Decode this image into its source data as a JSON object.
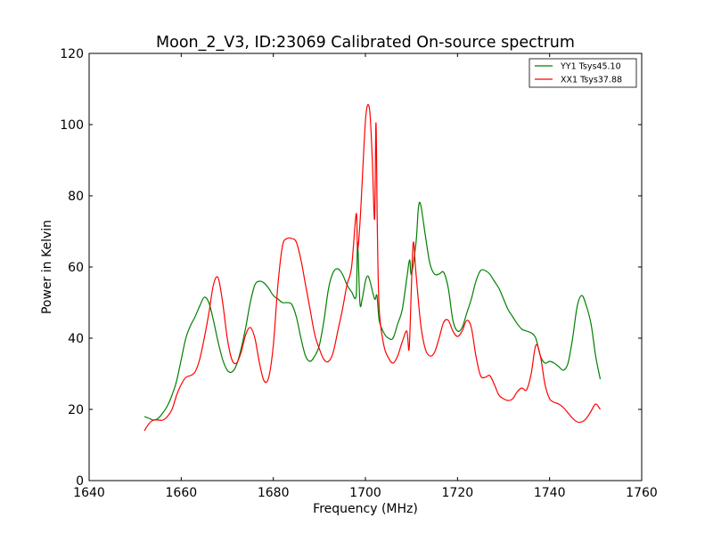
{
  "chart_data": {
    "type": "line",
    "title": "Moon_2_V3, ID:23069 Calibrated On-source spectrum",
    "xlabel": "Frequency (MHz)",
    "ylabel": "Power in Kelvin",
    "xlim": [
      1640,
      1760
    ],
    "ylim": [
      0,
      120
    ],
    "xticks": [
      "1640",
      "1660",
      "1680",
      "1700",
      "1720",
      "1740",
      "1760"
    ],
    "yticks": [
      "0",
      "20",
      "40",
      "60",
      "80",
      "100",
      "120"
    ],
    "grid": false,
    "legend_position": "top-right",
    "series": [
      {
        "name": "YY1 Tsys45.10",
        "color": "#008000",
        "x": [
          1652,
          1653,
          1654,
          1655,
          1656,
          1657,
          1658,
          1659,
          1660,
          1661,
          1662,
          1663,
          1664,
          1665,
          1666,
          1667,
          1668,
          1669,
          1670,
          1671,
          1672,
          1673,
          1674,
          1675,
          1676,
          1677,
          1678,
          1679,
          1680,
          1681,
          1682,
          1683,
          1684,
          1685,
          1686,
          1687,
          1688,
          1689,
          1690,
          1691,
          1692,
          1693,
          1694,
          1695,
          1696,
          1697,
          1698,
          1698.3,
          1698.8,
          1699.3,
          1700,
          1700.5,
          1701,
          1702,
          1702.5,
          1703,
          1704,
          1705,
          1706,
          1707,
          1708,
          1709,
          1709.6,
          1710,
          1711,
          1711.5,
          1712,
          1713,
          1714,
          1715,
          1716,
          1717,
          1718,
          1719,
          1720,
          1721,
          1722,
          1723,
          1724,
          1725,
          1726,
          1727,
          1728,
          1729,
          1730,
          1731,
          1732,
          1733,
          1734,
          1735,
          1736,
          1737,
          1738,
          1739,
          1740,
          1741,
          1742,
          1743,
          1744,
          1745,
          1746,
          1747,
          1748,
          1749,
          1750,
          1751
        ],
        "y": [
          18,
          17.5,
          17,
          17.5,
          19,
          21,
          24,
          28,
          34,
          40,
          43.5,
          46,
          49,
          51.5,
          50,
          45,
          39,
          34,
          31,
          30.5,
          32.5,
          37,
          43,
          50,
          55,
          56,
          55.5,
          54,
          52,
          51,
          50,
          50,
          49.5,
          46,
          40,
          35,
          33.5,
          35,
          38,
          45,
          54,
          58.5,
          59.5,
          58,
          55,
          53,
          52,
          67,
          50,
          51,
          56,
          57.5,
          56,
          51,
          52,
          45,
          41.5,
          40,
          40,
          44,
          48,
          57,
          62,
          58,
          67,
          76.5,
          77.5,
          69,
          61,
          58,
          58,
          58.5,
          54,
          45,
          42,
          43,
          47,
          51,
          56,
          59,
          59,
          58,
          56,
          54,
          51,
          48,
          46,
          44,
          42.5,
          42,
          41.5,
          40,
          35,
          33,
          33.5,
          33,
          32,
          31,
          33,
          40,
          49,
          52,
          49,
          44,
          35,
          28.5
        ]
      },
      {
        "name": "XX1 Tsys37.88",
        "color": "#ff0000",
        "x": [
          1652,
          1653,
          1654,
          1655,
          1656,
          1657,
          1658,
          1659,
          1660,
          1661,
          1662,
          1663,
          1664,
          1665,
          1666,
          1667,
          1668,
          1669,
          1670,
          1671,
          1672,
          1673,
          1674,
          1675,
          1676,
          1677,
          1678,
          1679,
          1680,
          1681,
          1682,
          1683,
          1684,
          1685,
          1686,
          1687,
          1688,
          1689,
          1690,
          1691,
          1692,
          1693,
          1694,
          1695,
          1696,
          1697,
          1698,
          1698.3,
          1698.8,
          1699.3,
          1700,
          1700.5,
          1701,
          1701.5,
          1702,
          1702.3,
          1702.6,
          1703,
          1704,
          1705,
          1706,
          1707,
          1708,
          1709,
          1709.5,
          1710,
          1710.4,
          1711,
          1712,
          1713,
          1714,
          1715,
          1716,
          1717,
          1718,
          1719,
          1720,
          1721,
          1722,
          1723,
          1724,
          1725,
          1726,
          1727,
          1728,
          1729,
          1730,
          1731,
          1732,
          1733,
          1734,
          1735,
          1736,
          1737,
          1738,
          1739,
          1740,
          1741,
          1742,
          1743,
          1744,
          1745,
          1746,
          1747,
          1748,
          1749,
          1750,
          1751
        ],
        "y": [
          14,
          16,
          17,
          17,
          17,
          18,
          20,
          24,
          27,
          29,
          29.5,
          30.5,
          34,
          40,
          47,
          55,
          57,
          50,
          40,
          34,
          33,
          36,
          41,
          43,
          40,
          33,
          28,
          29,
          38,
          55,
          66,
          68,
          68,
          67,
          62,
          55,
          48,
          41,
          37,
          34,
          33.5,
          36,
          42,
          48,
          55,
          60,
          75,
          65,
          72,
          84,
          101,
          105.5,
          103,
          90,
          73.5,
          100.5,
          70,
          48,
          38,
          34.5,
          33,
          35,
          39,
          42,
          37,
          55,
          67,
          58,
          44,
          37,
          35,
          36,
          40,
          44.5,
          45,
          42,
          40.5,
          42,
          45,
          43,
          35,
          29.5,
          29,
          29.5,
          27,
          24,
          23,
          22.5,
          23,
          25,
          26,
          25.5,
          30,
          38,
          35,
          27,
          23,
          22,
          21.5,
          20.5,
          19,
          17.5,
          16.5,
          16.5,
          17.5,
          19.5,
          21.5,
          20
        ]
      }
    ]
  }
}
